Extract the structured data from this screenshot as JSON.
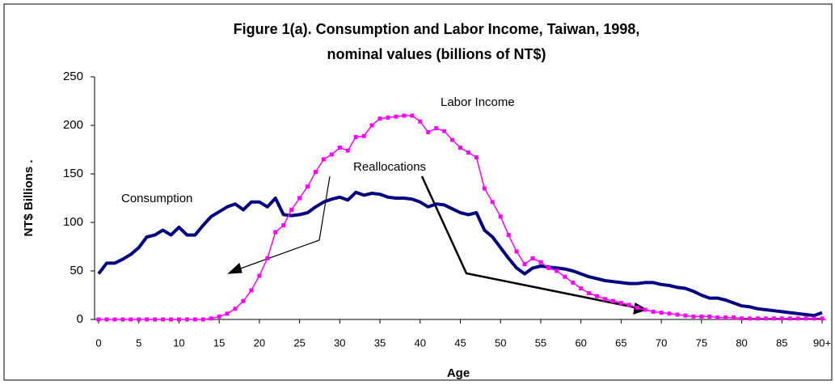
{
  "chart_data": {
    "type": "line",
    "title": [
      "Figure 1(a). Consumption and Labor Income, Taiwan, 1998,",
      "nominal values (billions of NT$)"
    ],
    "xlabel": "Age",
    "ylabel": "NT$ Billions  .",
    "x": [
      0,
      1,
      2,
      3,
      4,
      5,
      6,
      7,
      8,
      9,
      10,
      11,
      12,
      13,
      14,
      15,
      16,
      17,
      18,
      19,
      20,
      21,
      22,
      23,
      24,
      25,
      26,
      27,
      28,
      29,
      30,
      31,
      32,
      33,
      34,
      35,
      36,
      37,
      38,
      39,
      40,
      41,
      42,
      43,
      44,
      45,
      46,
      47,
      48,
      49,
      50,
      51,
      52,
      53,
      54,
      55,
      56,
      57,
      58,
      59,
      60,
      61,
      62,
      63,
      64,
      65,
      66,
      67,
      68,
      69,
      70,
      71,
      72,
      73,
      74,
      75,
      76,
      77,
      78,
      79,
      80,
      81,
      82,
      83,
      84,
      85,
      86,
      87,
      88,
      89,
      90
    ],
    "series": [
      {
        "name": "Consumption",
        "color": "#000080",
        "values": [
          47,
          58,
          58,
          62,
          67,
          74,
          85,
          87,
          92,
          87,
          95,
          87,
          87,
          97,
          106,
          111,
          116,
          119,
          113,
          121,
          121,
          116,
          125,
          108,
          107,
          108,
          110,
          116,
          121,
          124,
          126,
          123,
          131,
          128,
          130,
          129,
          126,
          125,
          125,
          124,
          121,
          116,
          119,
          118,
          114,
          110,
          108,
          110,
          92,
          85,
          74,
          63,
          53,
          47,
          53,
          55,
          54,
          53,
          52,
          50,
          47,
          44,
          42,
          40,
          39,
          38,
          37,
          37,
          38,
          38,
          36,
          35,
          33,
          32,
          29,
          25,
          22,
          22,
          20,
          17,
          14,
          13,
          11,
          10,
          9,
          8,
          7,
          6,
          5,
          4,
          7
        ]
      },
      {
        "name": "Labor Income",
        "color": "#ff00ff",
        "values": [
          0,
          0,
          0,
          0,
          0,
          0,
          0,
          0,
          0,
          0,
          0,
          0,
          0,
          0,
          1,
          3,
          6,
          11,
          19,
          30,
          45,
          63,
          90,
          97,
          113,
          125,
          137,
          152,
          165,
          170,
          177,
          174,
          188,
          189,
          200,
          207,
          208,
          209,
          210,
          210,
          204,
          193,
          197,
          194,
          185,
          177,
          172,
          167,
          135,
          121,
          106,
          87,
          70,
          57,
          63,
          59,
          53,
          50,
          44,
          38,
          32,
          27,
          24,
          21,
          19,
          17,
          15,
          12,
          10,
          8,
          7,
          6,
          5,
          4,
          3,
          3,
          3,
          2,
          2,
          2,
          1,
          1,
          1,
          1,
          1,
          1,
          1,
          1,
          1,
          1,
          1
        ]
      }
    ],
    "annotations": [
      "Reallocations"
    ],
    "xlim": [
      -0.5,
      90.5
    ],
    "xticks": [
      0,
      5,
      10,
      15,
      20,
      25,
      30,
      35,
      40,
      45,
      50,
      55,
      60,
      65,
      70,
      75,
      80,
      85,
      {
        "value": 90,
        "label": "90+"
      }
    ],
    "ylim": [
      0,
      250
    ],
    "yticks": [
      0,
      50,
      100,
      150,
      200,
      250
    ],
    "grid": false
  }
}
